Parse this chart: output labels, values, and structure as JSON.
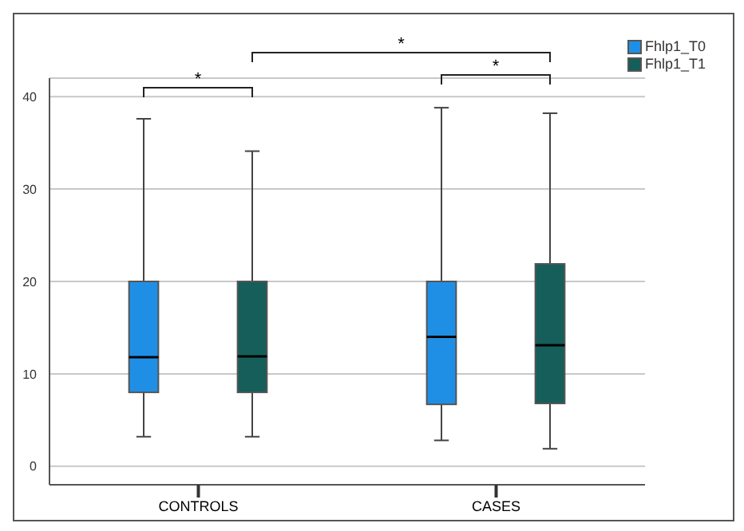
{
  "chart_data": {
    "type": "box",
    "categories": [
      "CONTROLS",
      "CASES"
    ],
    "series": [
      {
        "name": "Fhlp1_T0",
        "color": "#1f8fe6",
        "boxes": [
          {
            "low": 3.2,
            "q1": 8,
            "median": 11.8,
            "q3": 20,
            "high": 37.6
          },
          {
            "low": 2.8,
            "q1": 6.7,
            "median": 14,
            "q3": 20,
            "high": 38.8
          }
        ]
      },
      {
        "name": "Fhlp1_T1",
        "color": "#155e5a",
        "boxes": [
          {
            "low": 3.2,
            "q1": 8,
            "median": 11.9,
            "q3": 20,
            "high": 34.1
          },
          {
            "low": 1.9,
            "q1": 6.8,
            "median": 13.1,
            "q3": 21.9,
            "high": 38.2
          }
        ]
      }
    ],
    "ylim": [
      -2,
      42
    ],
    "yticks": [
      0,
      10,
      20,
      30,
      40
    ],
    "grid": "y",
    "legend": "top right",
    "annotations": [
      "*",
      "*",
      "*"
    ]
  }
}
